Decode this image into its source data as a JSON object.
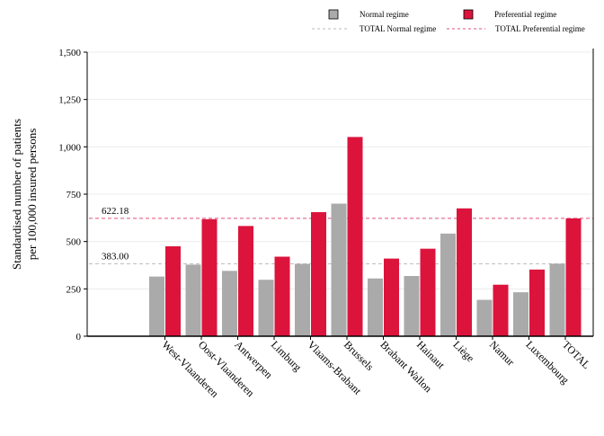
{
  "chart_data": {
    "type": "bar",
    "title": "",
    "xlabel": "",
    "ylabel_lines": [
      "Standardised number of patients",
      "per 100,000 insured persons"
    ],
    "ylim": [
      0,
      1500
    ],
    "yticks": [
      0,
      250,
      500,
      750,
      1000,
      1250,
      1500
    ],
    "ytick_labels": [
      "0",
      "250",
      "500",
      "750",
      "1,000",
      "1,250",
      "1,500"
    ],
    "grid": true,
    "legend_position": "top-right",
    "categories": [
      "West-Vlaanderen",
      "Oost-Vlaanderen",
      "Antwerpen",
      "Limburg",
      "Vlaams-Brabant",
      "Brussels",
      "Brabant Wallon",
      "Hainaut",
      "Liège",
      "Namur",
      "Luxembourg",
      "TOTAL"
    ],
    "series": [
      {
        "name": "Normal regime",
        "color": "#aaaaaa",
        "values": [
          315,
          378,
          345,
          298,
          382,
          700,
          305,
          318,
          542,
          192,
          232,
          383
        ]
      },
      {
        "name": "Preferential regime",
        "color": "#dc143c",
        "values": [
          475,
          618,
          582,
          420,
          655,
          1052,
          410,
          462,
          675,
          272,
          352,
          622
        ]
      }
    ],
    "reference_lines": [
      {
        "name": "TOTAL Normal regime",
        "value": 383.0,
        "label": "383.00",
        "color": "#bbbbbb"
      },
      {
        "name": "TOTAL Preferential regime",
        "value": 622.18,
        "label": "622.18",
        "color": "#e0507a"
      }
    ]
  }
}
